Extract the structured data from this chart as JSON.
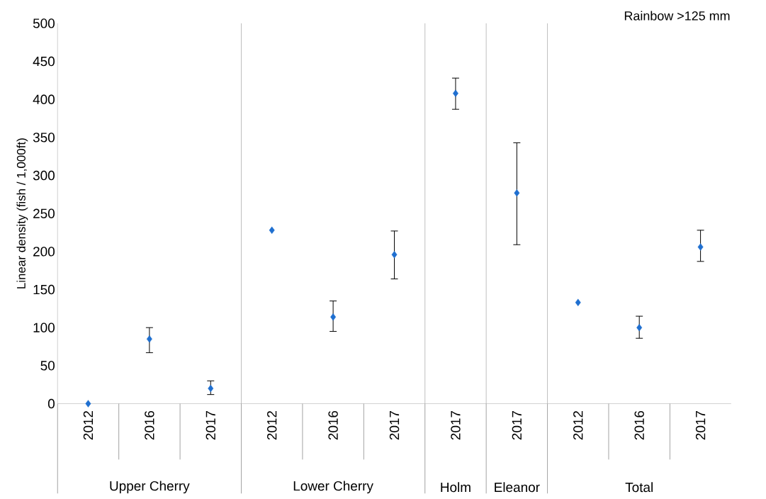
{
  "chart_data": {
    "type": "scatter",
    "title": "Rainbow >125 mm",
    "ylabel": "Linear density (fish / 1,000ft)",
    "categories": [
      "2012",
      "2016",
      "2017",
      "2012",
      "2016",
      "2017",
      "2017",
      "2017",
      "2012",
      "2016",
      "2017"
    ],
    "values": [
      0,
      85,
      20,
      228,
      114,
      196,
      408,
      277,
      133,
      100,
      206
    ],
    "errors": [
      null,
      [
        67,
        100
      ],
      [
        12,
        30
      ],
      null,
      [
        95,
        135
      ],
      [
        164,
        227
      ],
      [
        387,
        428
      ],
      [
        209,
        343
      ],
      null,
      [
        86,
        115
      ],
      [
        187,
        228
      ]
    ],
    "color": "#1f6fd0",
    "marker": "diamond",
    "ylim": [
      0,
      500
    ],
    "yticks": [
      0,
      50,
      100,
      150,
      200,
      250,
      300,
      350,
      400,
      450,
      500
    ],
    "grid": false,
    "annotations": [
      "Upper Cherry",
      "Lower Cherry",
      "Holm",
      "Eleanor",
      "Total"
    ]
  }
}
